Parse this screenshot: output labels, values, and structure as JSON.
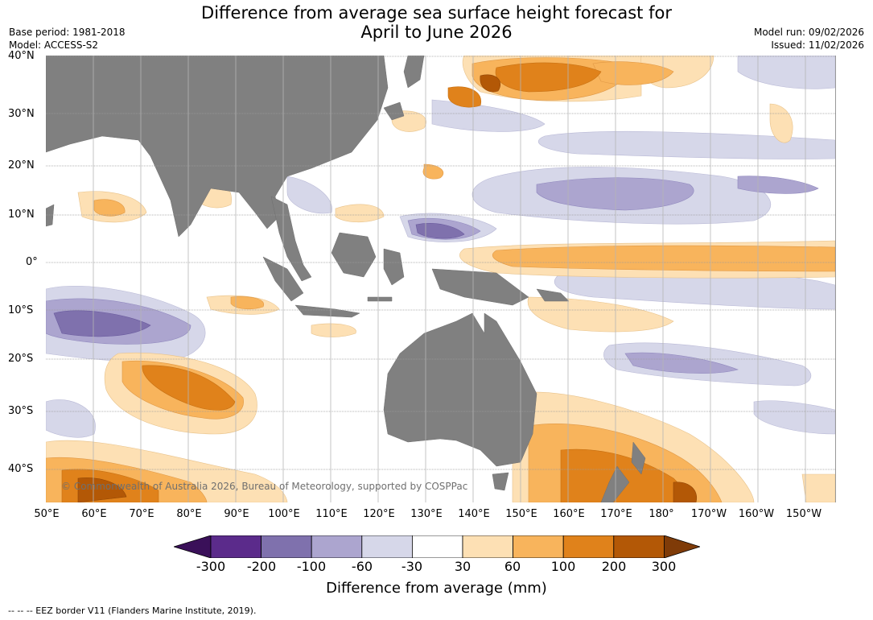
{
  "title_line1": "Difference from average sea surface height forecast for",
  "title_line2": "April to June 2026",
  "meta_left": {
    "base_period": "Base period: 1981-2018",
    "model": "Model: ACCESS-S2"
  },
  "meta_right": {
    "model_run": "Model run: 09/02/2026",
    "issued": "Issued: 11/02/2026"
  },
  "lat_labels": [
    "40°N",
    "30°N",
    "20°N",
    "10°N",
    "0°",
    "10°S",
    "20°S",
    "30°S",
    "40°S"
  ],
  "lon_labels": [
    "50°E",
    "60°E",
    "70°E",
    "80°E",
    "90°E",
    "100°E",
    "110°E",
    "120°E",
    "130°E",
    "140°E",
    "150°E",
    "160°E",
    "170°E",
    "180°",
    "170°W",
    "160°W",
    "150°W"
  ],
  "copyright": "© Commonwealth of Australia 2026, Bureau of Meteorology, supported by COSPPac",
  "colorbar": {
    "ticks": [
      "-300",
      "-200",
      "-100",
      "-60",
      "-30",
      "30",
      "60",
      "100",
      "200",
      "300"
    ],
    "colors": [
      "#3a1059",
      "#5b2b8b",
      "#7f71ad",
      "#aca5cf",
      "#d6d7e9",
      "#ffffff",
      "#fde0b4",
      "#f8b45c",
      "#e0821b",
      "#b35806",
      "#7f3b08"
    ],
    "label": "Difference from average (mm)"
  },
  "footer": "--  --  -- EEZ border V11 (Flanders Marine Institute, 2019)."
}
